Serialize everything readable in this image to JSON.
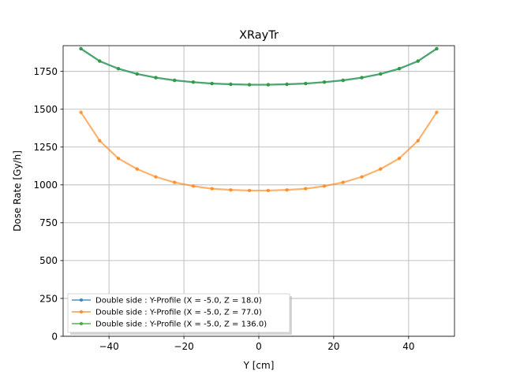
{
  "chart_data": {
    "type": "line",
    "title": "XRayTr",
    "xlabel": "Y [cm]",
    "ylabel": "Dose Rate [Gy/h]",
    "xlim": [
      -52.25,
      52.25
    ],
    "ylim": [
      0,
      1920
    ],
    "xticks": [
      -40,
      -20,
      0,
      20,
      40
    ],
    "yticks": [
      0,
      250,
      500,
      750,
      1000,
      1250,
      1500,
      1750
    ],
    "xtick_labels": [
      "−40",
      "−20",
      "0",
      "20",
      "40"
    ],
    "ytick_labels": [
      "0",
      "250",
      "500",
      "750",
      "1000",
      "1250",
      "1500",
      "1750"
    ],
    "grid": true,
    "legend_position": "lower-left",
    "x": [
      -47.5,
      -42.5,
      -37.5,
      -32.5,
      -27.5,
      -22.5,
      -17.5,
      -12.5,
      -7.5,
      -2.5,
      2.5,
      7.5,
      12.5,
      17.5,
      22.5,
      27.5,
      32.5,
      37.5,
      42.5,
      47.5
    ],
    "series": [
      {
        "name": "Double side : Y-Profile (X = -5.0, Z = 18.0)",
        "color": "#1f77b4",
        "values": [
          1900,
          1818,
          1768,
          1733,
          1709,
          1691,
          1679,
          1670,
          1665,
          1662,
          1662,
          1665,
          1670,
          1679,
          1691,
          1709,
          1733,
          1768,
          1818,
          1900
        ]
      },
      {
        "name": "Double side : Y-Profile (X = -5.0, Z = 77.0)",
        "color": "#ff7f0e",
        "values": [
          1480,
          1292,
          1175,
          1105,
          1053,
          1017,
          992,
          975,
          967,
          963,
          963,
          967,
          975,
          992,
          1017,
          1053,
          1105,
          1175,
          1292,
          1480
        ]
      },
      {
        "name": "Double side : Y-Profile (X = -5.0, Z = 136.0)",
        "color": "#2ca02c",
        "values": [
          1900,
          1818,
          1768,
          1733,
          1709,
          1691,
          1679,
          1670,
          1665,
          1662,
          1662,
          1665,
          1670,
          1679,
          1691,
          1709,
          1733,
          1768,
          1818,
          1900
        ]
      }
    ]
  }
}
